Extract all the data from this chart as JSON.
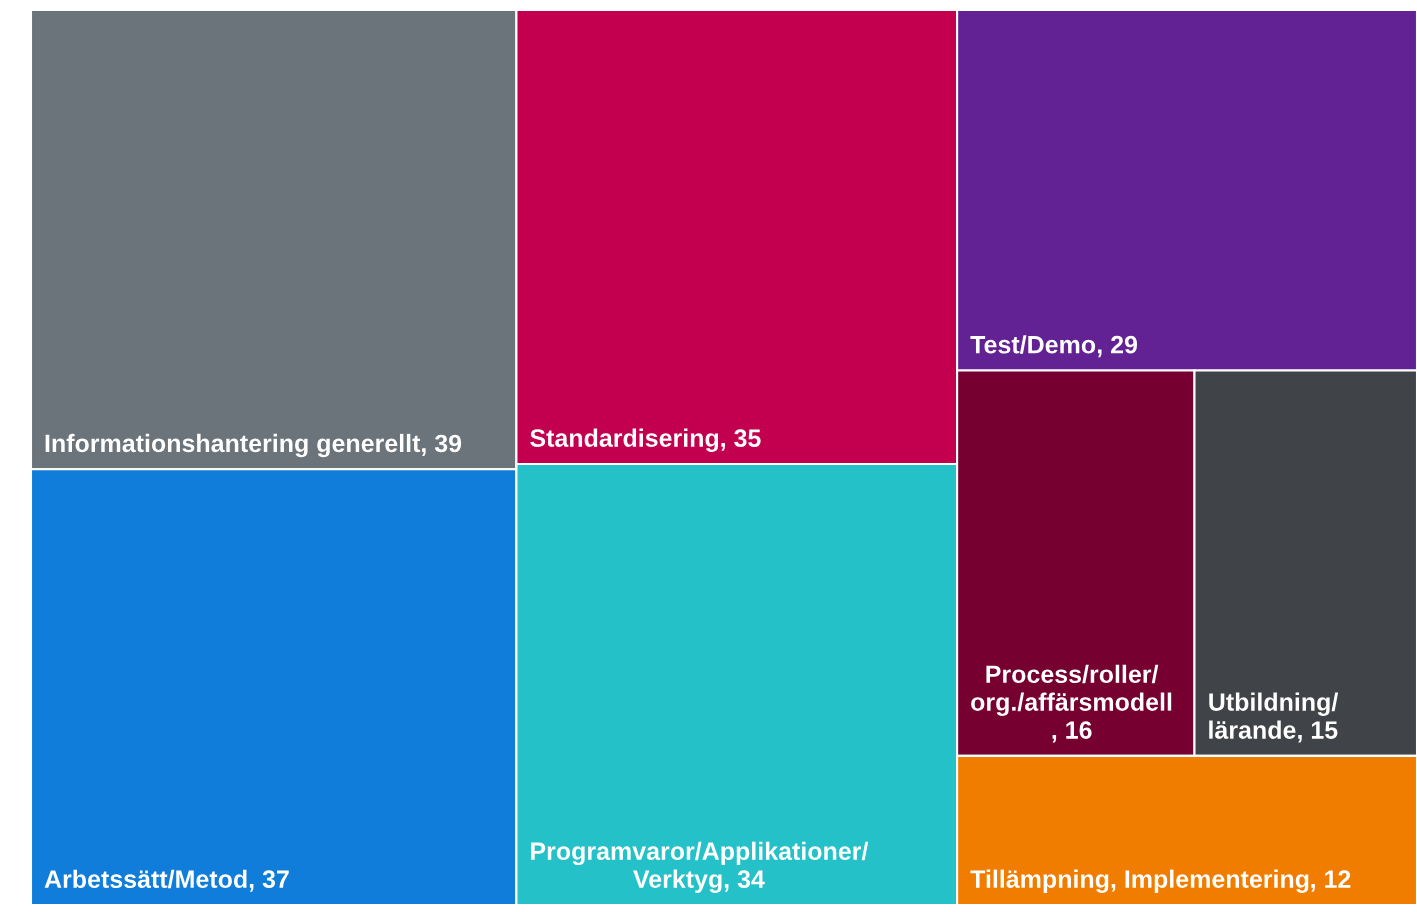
{
  "chart_data": {
    "type": "other",
    "categories": [
      "Informationshantering generellt",
      "Arbetssätt/Metod",
      "Standardisering",
      "Programvaror/Applikationer/Verktyg",
      "Test/Demo",
      "Process/roller/org./affärsmodell",
      "Utbildning/lärande",
      "Tillämpning, Implementering"
    ],
    "values": [
      39,
      37,
      35,
      34,
      29,
      16,
      15,
      12
    ],
    "colors": [
      "#6b747a",
      "#0f7dd9",
      "#c2004f",
      "#24c1c9",
      "#632293",
      "#76002f",
      "#404347",
      "#f07c00"
    ],
    "value_labels": [
      ", 39",
      ", 37",
      ", 35",
      ", 34",
      ", 29",
      ", 16",
      ", 15",
      ", 12"
    ]
  }
}
